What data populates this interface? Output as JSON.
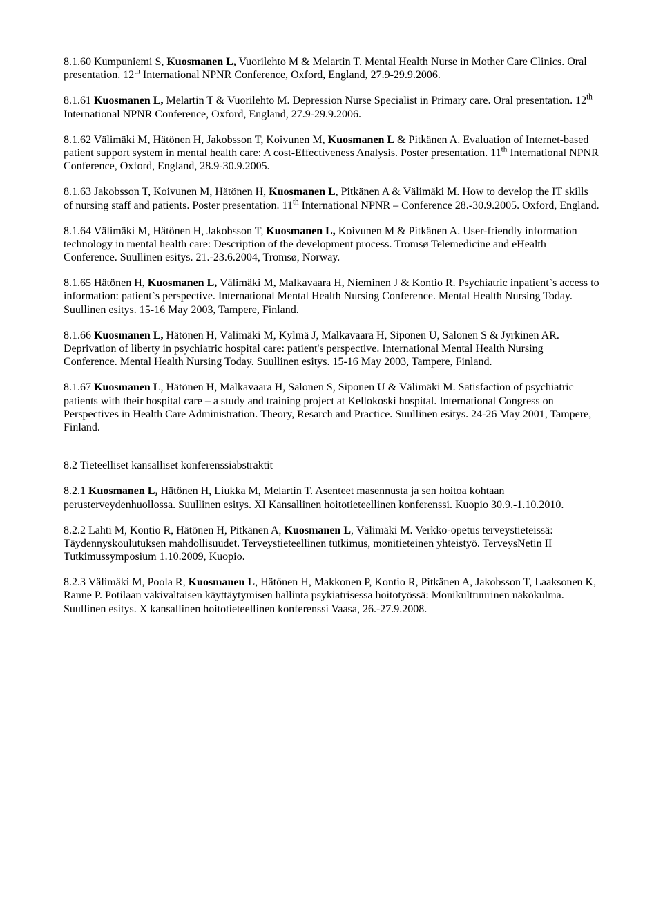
{
  "entries": [
    {
      "prefix": "8.1.60 Kumpuniemi S, ",
      "bold1": "Kuosmanen L,",
      "mid1": " Vuorilehto M & Melartin T. Mental Health Nurse in Mother Care Clinics. Oral presentation. 12",
      "sup": "th",
      "rest": " International NPNR Conference, Oxford, England, 27.9-29.9.2006."
    },
    {
      "prefix": "8.1.61 ",
      "bold1": "Kuosmanen L,",
      "mid1": " Melartin T & Vuorilehto M. Depression Nurse Specialist in Primary care. Oral presentation. 12",
      "sup": "th",
      "rest": " International NPNR Conference, Oxford, England, 27.9-29.9.2006."
    },
    {
      "prefix": "8.1.62 Välimäki M, Hätönen H, Jakobsson T, Koivunen M, ",
      "bold1": "Kuosmanen L",
      "mid1": " & Pitkänen A. Evaluation of Internet-based patient support system in mental health care: A cost-Effectiveness Analysis. Poster presentation. 11",
      "sup": "th",
      "rest": " International NPNR Conference, Oxford, England, 28.9-30.9.2005."
    },
    {
      "prefix": "8.1.63 Jakobsson T, Koivunen M, Hätönen H, ",
      "bold1": "Kuosmanen L",
      "mid1": ", Pitkänen A & Välimäki M. How to develop the IT skills of nursing staff and patients. Poster presentation. 11",
      "sup": "th",
      "rest": " International NPNR – Conference 28.-30.9.2005. Oxford, England."
    },
    {
      "prefix": "8.1.64 Välimäki M, Hätönen H, Jakobsson T, ",
      "bold1": "Kuosmanen L,",
      "mid1": " Koivunen M & Pitkänen A. User-friendly information technology in mental health care: Description of the development process. Tromsø Telemedicine and eHealth Conference. Suullinen esitys. 21.-23.6.2004, Tromsø, Norway.",
      "sup": "",
      "rest": ""
    },
    {
      "prefix": "8.1.65 Hätönen H, ",
      "bold1": "Kuosmanen L,",
      "mid1": " Välimäki M, Malkavaara H, Nieminen J & Kontio R. Psychiatric inpatient`s access to information: patient`s perspective. International Mental Health Nursing Conference. Mental Health Nursing Today. Suullinen esitys. 15-16 May 2003, Tampere, Finland.",
      "sup": "",
      "rest": ""
    },
    {
      "prefix": "8.1.66 ",
      "bold1": "Kuosmanen L,",
      "mid1": " Hätönen H, Välimäki M, Kylmä J, Malkavaara H, Siponen U, Salonen S & Jyrkinen AR. Deprivation of liberty in psychiatric hospital care: patient's perspective. International Mental Health Nursing Conference. Mental Health Nursing Today. Suullinen esitys. 15-16 May 2003, Tampere, Finland.",
      "sup": "",
      "rest": ""
    },
    {
      "prefix": "8.1.67 ",
      "bold1": "Kuosmanen L",
      "mid1": ", Hätönen H, Malkavaara H, Salonen S, Siponen U & Välimäki M. Satisfaction of psychiatric patients with their hospital care – a study and training project at Kellokoski hospital. International Congress on Perspectives in Health Care Administration. Theory, Resarch and Practice. Suullinen esitys. 24-26 May 2001, Tampere, Finland.",
      "sup": "",
      "rest": ""
    }
  ],
  "sectionHeading": "8.2 Tieteelliset kansalliset konferenssiabstraktit",
  "entries2": [
    {
      "prefix": "8.2.1 ",
      "bold1": "Kuosmanen L,",
      "mid1": " Hätönen H, Liukka M, Melartin T. Asenteet masennusta ja sen hoitoa kohtaan perusterveydenhuollossa. Suullinen esitys. XI Kansallinen hoitotieteellinen konferenssi. Kuopio 30.9.-1.10.2010.",
      "sup": "",
      "rest": ""
    },
    {
      "prefix": "8.2.2 Lahti M, Kontio R, Hätönen H, Pitkänen A, ",
      "bold1": "Kuosmanen L",
      "mid1": ", Välimäki M. Verkko-opetus terveystieteissä: Täydennyskoulutuksen mahdollisuudet. Terveystieteellinen tutkimus, monitieteinen yhteistyö. TerveysNetin II Tutkimussymposium 1.10.2009, Kuopio.",
      "sup": "",
      "rest": ""
    },
    {
      "prefix": "8.2.3 Välimäki M, Poola R, ",
      "bold1": "Kuosmanen L",
      "mid1": ", Hätönen H, Makkonen P, Kontio R, Pitkänen A, Jakobsson T, Laaksonen K, Ranne P. Potilaan väkivaltaisen käyttäytymisen hallinta psykiatrisessa hoitotyössä: Monikulttuurinen näkökulma. Suullinen esitys. X kansallinen hoitotieteellinen konferenssi Vaasa, 26.-27.9.2008.",
      "sup": "",
      "rest": ""
    }
  ]
}
